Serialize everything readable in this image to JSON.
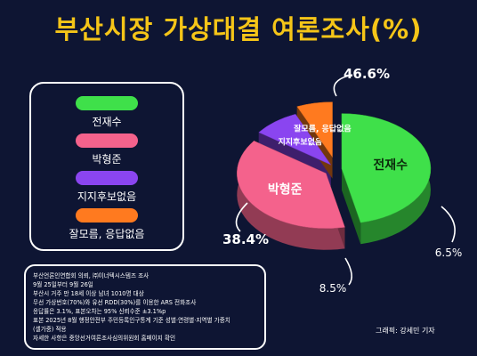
{
  "title": "부산시장 가상대결 여론조사(%)",
  "chart_data": {
    "type": "pie",
    "title": "부산시장 가상대결 여론조사(%)",
    "categories": [
      "전재수",
      "박형준",
      "지지후보없음",
      "잘모름, 응답없음"
    ],
    "values": [
      46.6,
      38.4,
      8.5,
      6.5
    ],
    "value_labels": [
      "46.6%",
      "38.4%",
      "8.5%",
      "6.5%"
    ],
    "colors": [
      "#3fe04a",
      "#f4628c",
      "#8a45f0",
      "#ff7a1f"
    ],
    "legend": "left"
  },
  "legend": {
    "items": [
      {
        "label": "전재수",
        "color": "#3fe04a"
      },
      {
        "label": "박형준",
        "color": "#f4628c"
      },
      {
        "label": "지지후보없음",
        "color": "#8a45f0"
      },
      {
        "label": "잘모름, 응답없음",
        "color": "#ff7a1f"
      }
    ]
  },
  "notes": [
    "부산언론인연합회 의뢰, ㈜이너텍시스템즈 조사",
    "9월 25일부터 9월 26일",
    "부산시 거주 만 18세 이상 남녀 1010명 대상",
    "무선 가상번호(70%)와 유선 RDD(30%)를 이용한 ARS 전화조사",
    "응답률은 3.1%, 표본오차는 95% 신뢰수준 ±3.1%p",
    "표본 2025년 8월 행정안전부 주민등록인구통계 기준 성별·연령별·지역별 가중치",
    "(셀가중) 적용",
    "자세한 사항은 중앙선거여론조사심의위원회 홈페이지 확인"
  ],
  "credit": "그래픽: 강세민 기자"
}
